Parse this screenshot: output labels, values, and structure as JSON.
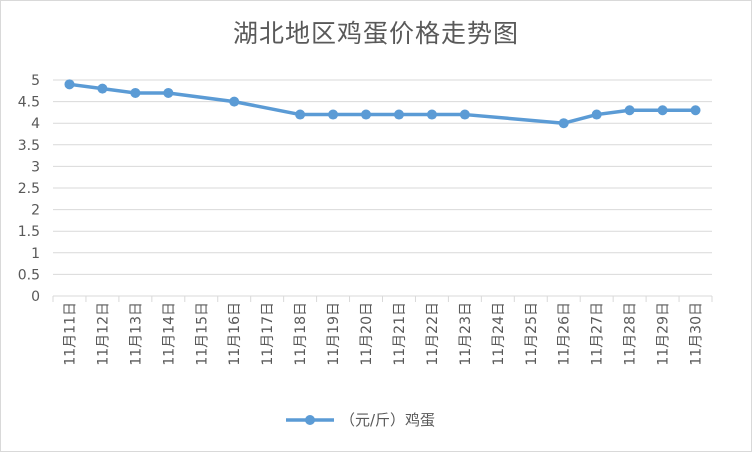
{
  "chart_data": {
    "type": "line",
    "title": "湖北地区鸡蛋价格走势图",
    "categories": [
      "11月11日",
      "11月12日",
      "11月13日",
      "11月14日",
      "11月15日",
      "11月16日",
      "11月17日",
      "11月18日",
      "11月19日",
      "11月20日",
      "11月21日",
      "11月22日",
      "11月23日",
      "11月24日",
      "11月25日",
      "11月26日",
      "11月27日",
      "11月28日",
      "11月29日",
      "11月30日"
    ],
    "series": [
      {
        "name": "（元/斤）鸡蛋",
        "color": "#5b9bd5",
        "values": [
          4.9,
          4.8,
          4.7,
          4.7,
          null,
          4.5,
          null,
          4.2,
          4.2,
          4.2,
          4.2,
          4.2,
          4.2,
          null,
          null,
          4.0,
          4.2,
          4.3,
          4.3,
          4.3
        ]
      }
    ],
    "yticks": [
      "0",
      "0.5",
      "1",
      "1.5",
      "2",
      "2.5",
      "3",
      "3.5",
      "4",
      "4.5",
      "5"
    ],
    "ylim": [
      0,
      5
    ],
    "grid": true,
    "legend": "bottom",
    "colors": {
      "grid": "#d9d9d9",
      "text": "#595959",
      "line": "#5b9bd5"
    }
  }
}
